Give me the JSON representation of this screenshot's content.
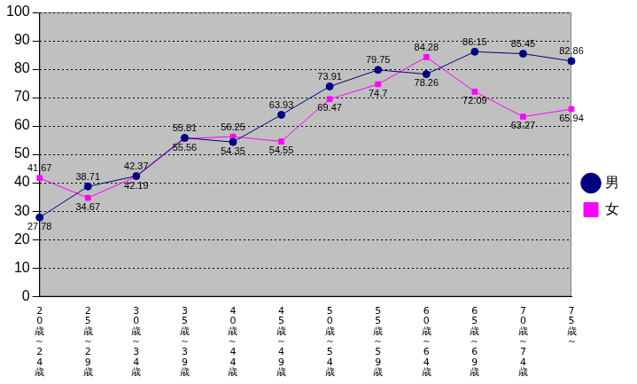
{
  "chart_data": {
    "type": "line",
    "categories": [
      "20歳～24歳",
      "25歳～29歳",
      "30歳～34歳",
      "35歳～39歳",
      "40歳～44歳",
      "45歳～49歳",
      "50歳～54歳",
      "55歳～59歳",
      "60歳～64歳",
      "65歳～69歳",
      "70歳～74歳",
      "75歳～"
    ],
    "series": [
      {
        "name": "男",
        "color": "#000080",
        "marker": "circle",
        "values": [
          27.78,
          38.71,
          42.37,
          55.81,
          54.35,
          63.93,
          73.91,
          79.75,
          78.26,
          86.15,
          85.45,
          82.86
        ]
      },
      {
        "name": "女",
        "color": "#ff00ff",
        "marker": "square",
        "values": [
          41.67,
          34.67,
          42.19,
          55.56,
          56.25,
          54.55,
          69.47,
          74.7,
          84.28,
          72.09,
          63.27,
          65.94
        ]
      }
    ],
    "ylim": [
      0,
      100
    ],
    "yticks": [
      0,
      10,
      20,
      30,
      40,
      50,
      60,
      70,
      80,
      90,
      100
    ],
    "grid": true,
    "legend": "right",
    "data_labels": true
  }
}
